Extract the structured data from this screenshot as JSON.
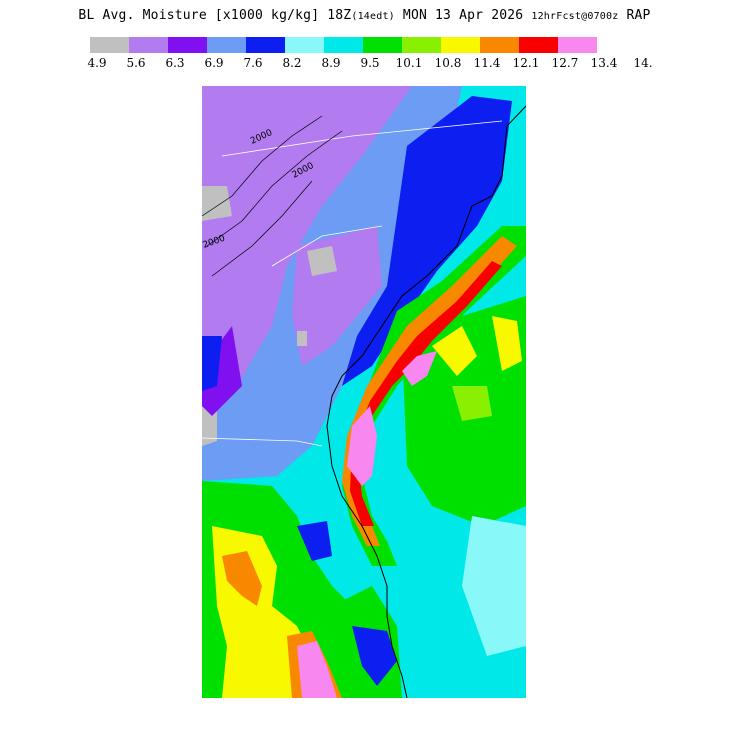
{
  "title": {
    "main": "BL Avg. Moisture [x1000 kg/kg] 18Z",
    "local_time": "(14edt)",
    "date": "MON 13 Apr 2026",
    "forecast": "12hrFcst@0700z",
    "model": "RAP"
  },
  "legend": {
    "colors": [
      "#c0c0c0",
      "#b27cf0",
      "#8010f0",
      "#6c9cf4",
      "#0c1ef0",
      "#88f8f8",
      "#00e8e8",
      "#00e000",
      "#88f000",
      "#f8f800",
      "#f88800",
      "#f80000",
      "#f888f0"
    ],
    "ticks": [
      "4.9",
      "5.6",
      "6.3",
      "6.9",
      "7.6",
      "8.2",
      "8.9",
      "9.5",
      "10.1",
      "10.8",
      "11.4",
      "12.1",
      "12.7",
      "13.4",
      "14."
    ]
  },
  "map": {
    "contour_labels": [
      "2000",
      "2000",
      "2000"
    ]
  }
}
